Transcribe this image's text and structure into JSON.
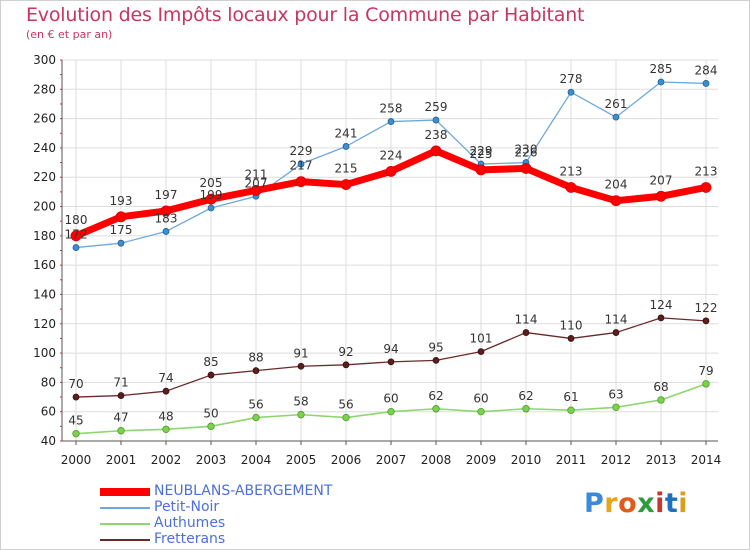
{
  "chart_data": {
    "type": "line",
    "title": "Evolution des Impôts locaux pour la Commune par Habitant",
    "subtitle": "(en € et par an)",
    "x": [
      "2000",
      "2001",
      "2002",
      "2003",
      "2004",
      "2005",
      "2006",
      "2007",
      "2008",
      "2009",
      "2010",
      "2011",
      "2012",
      "2013",
      "2014"
    ],
    "ylim": [
      40,
      300
    ],
    "yticks": [
      40,
      60,
      80,
      100,
      120,
      140,
      160,
      180,
      200,
      220,
      240,
      260,
      280,
      300
    ],
    "grid": true,
    "legend_position": "bottom-left",
    "series": [
      {
        "name": "NEUBLANS-ABERGEMENT",
        "color": "#ff0000",
        "values": [
          180,
          193,
          197,
          205,
          211,
          217,
          215,
          224,
          238,
          225,
          226,
          213,
          204,
          207,
          213
        ]
      },
      {
        "name": "Petit-Noir",
        "color": "#6fa8dc",
        "values": [
          172,
          175,
          183,
          199,
          207,
          229,
          241,
          258,
          259,
          229,
          230,
          278,
          261,
          285,
          284
        ]
      },
      {
        "name": "Authumes",
        "color": "#8ed66f",
        "values": [
          45,
          47,
          48,
          50,
          56,
          58,
          56,
          60,
          62,
          60,
          62,
          61,
          63,
          68,
          79
        ]
      },
      {
        "name": "Fretterans",
        "color": "#6b2a2a",
        "values": [
          70,
          71,
          74,
          85,
          88,
          91,
          92,
          94,
          95,
          101,
          114,
          110,
          114,
          124,
          122
        ]
      }
    ]
  },
  "legend": {
    "items": [
      "NEUBLANS-ABERGEMENT",
      "Petit-Noir",
      "Authumes",
      "Fretterans"
    ]
  },
  "logo": {
    "text": "Proxiti",
    "letters": [
      "P",
      "r",
      "o",
      "x",
      "i",
      "t",
      "i"
    ],
    "colors": [
      "#3b8ad9",
      "#e8a41c",
      "#e05c1a",
      "#2c9c3c",
      "#c7362f",
      "#1e6fc0",
      "#d9a01b"
    ]
  }
}
